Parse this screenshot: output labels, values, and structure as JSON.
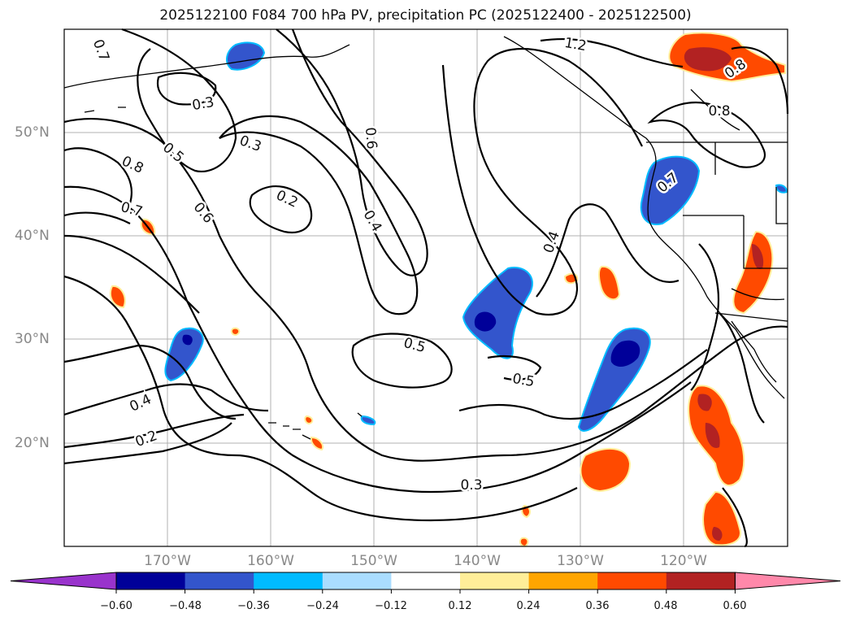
{
  "title": "2025122100 F084 700 hPa PV, precipitation PC (2025122400 - 2025122500)",
  "longitude_labels": [
    "170°W",
    "160°W",
    "150°W",
    "140°W",
    "130°W",
    "120°W"
  ],
  "latitude_labels": [
    "50°N",
    "40°N",
    "30°N",
    "20°N"
  ],
  "map_extent": {
    "lon_min": -180,
    "lon_max": -110,
    "lat_min": 10,
    "lat_max": 60
  },
  "contour_labels": [
    "0.7",
    "0.3",
    "0.5",
    "0.8",
    "0.7",
    "0.6",
    "0.3",
    "0.2",
    "0.6",
    "0.4",
    "0.4",
    "0.5",
    "0.5",
    "0.4",
    "0.2",
    "0.3",
    "1.2",
    "0.8",
    "0.8",
    "0.7"
  ],
  "colorbar": {
    "tick_labels": [
      "−0.60",
      "−0.48",
      "−0.36",
      "−0.24",
      "−0.12",
      "0.12",
      "0.24",
      "0.36",
      "0.48",
      "0.60"
    ],
    "colors": [
      "#9933cc",
      "#000099",
      "#3355cc",
      "#00bbff",
      "#aaddff",
      "#ffffff",
      "#ffee99",
      "#ffa500",
      "#ff4a00",
      "#b22222",
      "#ff88aa"
    ]
  }
}
